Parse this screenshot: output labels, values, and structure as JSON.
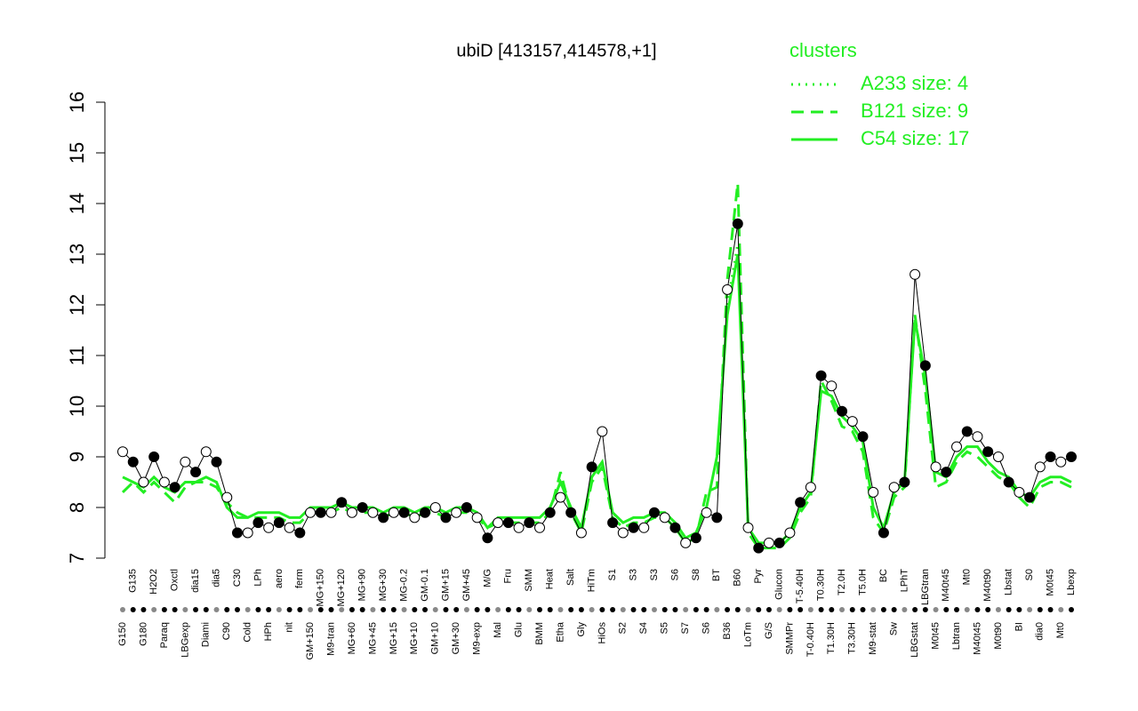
{
  "chart_data": {
    "type": "line",
    "title": "ubiD [413157,414578,+1]",
    "legend_title": "clusters",
    "legend_color": "#22ee22",
    "categories": [
      "G150",
      "G135",
      "G180",
      "H2O2",
      "Paraq",
      "Oxctl",
      "LBGexp",
      "dia15",
      "Diami",
      "dia5",
      "C90",
      "C30",
      "Cold",
      "LPh",
      "HPh",
      "aero",
      "nit",
      "ferm",
      "GM+150",
      "MG+150",
      "M9-tran",
      "MG+120",
      "MG+60",
      "MG+90",
      "MG+45",
      "MG+30",
      "MG+15",
      "MG-0.2",
      "MG+10",
      "GM-0.1",
      "GM+10",
      "GM+15",
      "GM+30",
      "GM+45",
      "M9-exp",
      "M/G",
      "Mal",
      "Fru",
      "Glu",
      "SMM",
      "BMM",
      "Heat",
      "Etha",
      "Salt",
      "Gly",
      "HiTm",
      "HiOs",
      "S1",
      "S2",
      "S3",
      "S4",
      "S3",
      "S5",
      "S6",
      "S7",
      "S8",
      "S6",
      "BT",
      "B36",
      "B60",
      "LoTm",
      "Pyr",
      "G/S",
      "Glucon",
      "SMMPr",
      "T-5.40H",
      "T-0.40H",
      "T0.30H",
      "T1.30H",
      "T2.0H",
      "T3.30H",
      "T5.0H",
      "M9-stat",
      "BC",
      "Sw",
      "LPhT",
      "LBGstat",
      "LBGtran",
      "M0t45",
      "M40t45",
      "Lbtran",
      "Mt0",
      "M40t45",
      "M40t90",
      "M0t90",
      "Lbstat",
      "BI",
      "S0",
      "dia0",
      "M0t45",
      "Mt0",
      "Lbexp"
    ],
    "values": [
      9.1,
      8.9,
      8.5,
      9.0,
      8.5,
      8.4,
      8.9,
      8.7,
      9.1,
      8.9,
      8.2,
      7.5,
      7.5,
      7.7,
      7.6,
      7.7,
      7.6,
      7.5,
      7.9,
      7.9,
      7.9,
      8.1,
      7.9,
      8.0,
      7.9,
      7.8,
      7.9,
      7.9,
      7.8,
      7.9,
      8.0,
      7.8,
      7.9,
      8.0,
      7.8,
      7.4,
      7.7,
      7.7,
      7.6,
      7.7,
      7.6,
      7.9,
      8.2,
      7.9,
      7.5,
      8.8,
      9.5,
      7.7,
      7.5,
      7.6,
      7.6,
      7.9,
      7.8,
      7.6,
      7.3,
      7.4,
      7.9,
      7.8,
      12.3,
      13.6,
      7.6,
      7.2,
      7.3,
      7.3,
      7.5,
      8.1,
      8.4,
      10.6,
      10.4,
      9.9,
      9.7,
      9.4,
      8.3,
      7.5,
      8.4,
      8.5,
      12.6,
      10.8,
      8.8,
      8.7,
      9.2,
      9.5,
      9.4,
      9.1,
      9.0,
      8.5,
      8.3,
      8.2,
      8.8,
      9.0,
      8.9,
      9.0
    ],
    "series": [
      {
        "name": "A233 size: 4",
        "style": "dotted",
        "color": "#22ee22",
        "values": [
          null,
          null,
          null,
          null,
          null,
          null,
          null,
          null,
          null,
          null,
          null,
          null,
          null,
          null,
          null,
          null,
          null,
          null,
          null,
          null,
          null,
          null,
          null,
          null,
          null,
          null,
          null,
          null,
          null,
          null,
          null,
          null,
          null,
          null,
          null,
          null,
          null,
          null,
          null,
          null,
          null,
          null,
          null,
          null,
          null,
          null,
          null,
          null,
          null,
          null,
          null,
          null,
          null,
          null,
          null,
          null,
          null,
          null,
          12.0,
          13.2,
          null,
          null,
          null,
          null,
          null,
          null,
          null,
          null,
          null,
          null,
          null,
          null,
          null,
          null,
          null,
          null,
          null,
          null,
          null,
          null,
          null,
          null,
          null,
          null,
          null,
          null,
          null,
          null,
          null,
          null,
          null,
          null
        ]
      },
      {
        "name": "B121 size: 9",
        "style": "dashed",
        "color": "#22ee22",
        "values": [
          8.3,
          8.5,
          8.3,
          8.5,
          8.3,
          8.1,
          8.4,
          8.5,
          8.5,
          8.4,
          8.1,
          7.9,
          7.8,
          7.8,
          7.8,
          7.8,
          7.7,
          7.7,
          7.9,
          7.9,
          7.9,
          8.0,
          7.9,
          7.9,
          7.9,
          7.8,
          7.9,
          7.9,
          7.8,
          7.9,
          7.9,
          7.8,
          7.9,
          7.9,
          7.8,
          7.6,
          7.7,
          7.7,
          7.7,
          7.7,
          7.7,
          7.9,
          8.7,
          7.9,
          7.5,
          8.5,
          8.8,
          7.8,
          7.6,
          7.7,
          7.7,
          7.8,
          7.8,
          7.6,
          7.3,
          7.4,
          8.3,
          8.4,
          12.5,
          14.4,
          7.5,
          7.2,
          7.2,
          7.2,
          7.4,
          7.9,
          8.2,
          10.5,
          10.1,
          9.6,
          9.5,
          9.1,
          7.8,
          7.5,
          8.2,
          8.4,
          11.8,
          10.3,
          8.4,
          8.5,
          8.9,
          9.1,
          9.0,
          8.8,
          8.6,
          8.5,
          8.2,
          8.0,
          8.4,
          8.5,
          8.5,
          8.4
        ]
      },
      {
        "name": "C54 size: 17",
        "style": "solid",
        "color": "#22ee22",
        "values": [
          8.6,
          8.5,
          8.4,
          8.6,
          8.4,
          8.3,
          8.5,
          8.5,
          8.6,
          8.5,
          8.0,
          7.8,
          7.8,
          7.9,
          7.9,
          7.9,
          7.8,
          7.8,
          8.0,
          8.0,
          8.0,
          8.1,
          8.0,
          8.0,
          8.0,
          7.9,
          8.0,
          8.0,
          7.9,
          8.0,
          8.0,
          7.9,
          8.0,
          8.0,
          7.9,
          7.6,
          7.8,
          7.8,
          7.8,
          7.8,
          7.8,
          8.0,
          8.5,
          8.0,
          7.6,
          8.6,
          8.9,
          7.9,
          7.7,
          7.8,
          7.8,
          7.9,
          7.9,
          7.7,
          7.4,
          7.5,
          8.0,
          9.0,
          11.8,
          13.0,
          7.6,
          7.3,
          7.3,
          7.3,
          7.5,
          8.0,
          8.3,
          10.3,
          10.2,
          9.8,
          9.6,
          9.3,
          8.0,
          7.6,
          8.3,
          8.5,
          11.7,
          10.6,
          8.7,
          8.6,
          9.0,
          9.2,
          9.2,
          8.9,
          8.7,
          8.6,
          8.3,
          8.2,
          8.5,
          8.6,
          8.6,
          8.5
        ]
      }
    ],
    "ylim": [
      7,
      16
    ],
    "yticks": [
      7,
      8,
      9,
      10,
      11,
      12,
      13,
      14,
      15,
      16
    ]
  }
}
